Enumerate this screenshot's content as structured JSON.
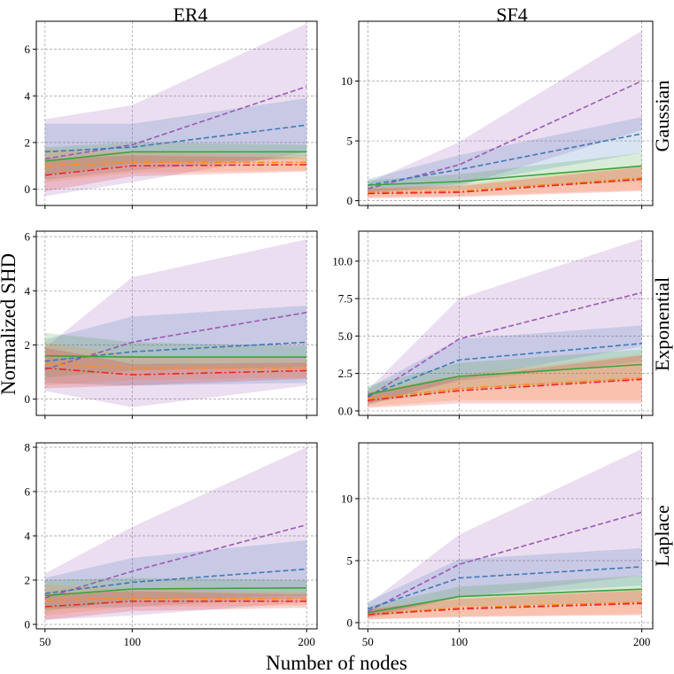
{
  "figure": {
    "xlabel": "Number of nodes",
    "ylabel": "Normalized SHD",
    "col_titles": [
      "ER4",
      "SF4"
    ],
    "row_titles": [
      "Gaussian",
      "Exponential",
      "Laplace"
    ]
  },
  "chart_data": [
    {
      "type": "line",
      "graph": "ER4",
      "noise": "Gaussian",
      "x": [
        50,
        100,
        200
      ],
      "xticks": [
        "50",
        "100",
        "200"
      ],
      "xlim": [
        45,
        206
      ],
      "ylim": [
        -0.7,
        7.2
      ],
      "yticks": [
        0,
        2,
        4,
        6
      ],
      "ytick_labels": [
        "0",
        "2",
        "4",
        "6"
      ],
      "grid": true,
      "series": [
        {
          "name": "purple",
          "color": "#9b59b6",
          "style": "dashed",
          "values": [
            1.3,
            1.9,
            4.4
          ],
          "band_low": [
            -0.3,
            0.3,
            1.6
          ],
          "band_high": [
            3.0,
            3.6,
            7.1
          ]
        },
        {
          "name": "blue",
          "color": "#3d7ab8",
          "style": "dashed",
          "values": [
            1.6,
            1.8,
            2.75
          ],
          "band_low": [
            0.4,
            0.8,
            1.4
          ],
          "band_high": [
            2.8,
            2.8,
            3.9
          ]
        },
        {
          "name": "green",
          "color": "#3ba23b",
          "style": "solid",
          "values": [
            1.2,
            1.6,
            1.6
          ],
          "band_low": [
            0.6,
            1.1,
            1.3
          ],
          "band_high": [
            1.8,
            2.0,
            1.9
          ]
        },
        {
          "name": "orange",
          "color": "#ff8c1a",
          "style": "dashdot",
          "values": [
            1.0,
            1.15,
            1.15
          ],
          "band_low": [
            0.3,
            0.7,
            0.8
          ],
          "band_high": [
            1.7,
            1.6,
            1.5
          ]
        },
        {
          "name": "red",
          "color": "#e8262a",
          "style": "dashdot",
          "values": [
            0.6,
            1.0,
            1.05
          ],
          "band_low": [
            -0.1,
            0.55,
            0.75
          ],
          "band_high": [
            1.3,
            1.45,
            1.35
          ]
        }
      ]
    },
    {
      "type": "line",
      "graph": "SF4",
      "noise": "Gaussian",
      "x": [
        50,
        100,
        200
      ],
      "xticks": [
        "50",
        "100",
        "200"
      ],
      "xlim": [
        45,
        206
      ],
      "ylim": [
        -0.4,
        15.0
      ],
      "yticks": [
        0,
        5,
        10
      ],
      "ytick_labels": [
        "0",
        "5",
        "10"
      ],
      "grid": true,
      "series": [
        {
          "name": "purple",
          "color": "#9b59b6",
          "style": "dashed",
          "values": [
            1.0,
            3.0,
            10.0
          ],
          "band_low": [
            0.6,
            1.2,
            5.9
          ],
          "band_high": [
            1.5,
            4.9,
            14.2
          ]
        },
        {
          "name": "blue",
          "color": "#3d7ab8",
          "style": "dashed",
          "values": [
            1.3,
            2.6,
            5.6
          ],
          "band_low": [
            0.7,
            1.4,
            4.0
          ],
          "band_high": [
            1.8,
            3.8,
            7.0
          ]
        },
        {
          "name": "green",
          "color": "#3ba23b",
          "style": "solid",
          "values": [
            1.3,
            1.6,
            2.9
          ],
          "band_low": [
            0.8,
            0.9,
            1.6
          ],
          "band_high": [
            1.7,
            2.2,
            4.0
          ]
        },
        {
          "name": "orange",
          "color": "#ff8c1a",
          "style": "dashdot",
          "values": [
            0.7,
            0.8,
            1.9
          ],
          "band_low": [
            0.3,
            0.4,
            0.9
          ],
          "band_high": [
            1.1,
            1.3,
            3.0
          ]
        },
        {
          "name": "red",
          "color": "#e8262a",
          "style": "dashdot",
          "values": [
            0.6,
            0.7,
            1.8
          ],
          "band_low": [
            0.2,
            0.3,
            0.8
          ],
          "band_high": [
            1.0,
            1.2,
            2.8
          ]
        }
      ]
    },
    {
      "type": "line",
      "graph": "ER4",
      "noise": "Exponential",
      "x": [
        50,
        100,
        200
      ],
      "xticks": [
        "50",
        "100",
        "200"
      ],
      "xlim": [
        45,
        206
      ],
      "ylim": [
        -0.6,
        6.2
      ],
      "yticks": [
        0,
        2,
        4,
        6
      ],
      "ytick_labels": [
        "0",
        "2",
        "4",
        "6"
      ],
      "grid": true,
      "series": [
        {
          "name": "purple",
          "color": "#9b59b6",
          "style": "dashed",
          "values": [
            1.1,
            2.1,
            3.2
          ],
          "band_low": [
            0.3,
            -0.3,
            0.5
          ],
          "band_high": [
            1.9,
            4.5,
            5.9
          ]
        },
        {
          "name": "blue",
          "color": "#3d7ab8",
          "style": "dashed",
          "values": [
            1.4,
            1.75,
            2.1
          ],
          "band_low": [
            0.6,
            0.5,
            0.6
          ],
          "band_high": [
            2.2,
            3.05,
            3.45
          ]
        },
        {
          "name": "green",
          "color": "#3ba23b",
          "style": "solid",
          "values": [
            1.6,
            1.55,
            1.55
          ],
          "band_low": [
            0.8,
            1.05,
            1.2
          ],
          "band_high": [
            2.45,
            2.1,
            1.95
          ]
        },
        {
          "name": "orange",
          "color": "#ff8c1a",
          "style": "dashdot",
          "values": [
            1.3,
            1.15,
            1.15
          ],
          "band_low": [
            0.5,
            0.7,
            0.8
          ],
          "band_high": [
            2.1,
            1.6,
            1.5
          ]
        },
        {
          "name": "red",
          "color": "#e8262a",
          "style": "dashdot",
          "values": [
            1.15,
            0.9,
            1.05
          ],
          "band_low": [
            0.4,
            0.5,
            0.75
          ],
          "band_high": [
            1.9,
            1.3,
            1.35
          ]
        }
      ]
    },
    {
      "type": "line",
      "graph": "SF4",
      "noise": "Exponential",
      "x": [
        50,
        100,
        200
      ],
      "xticks": [
        "50",
        "100",
        "200"
      ],
      "xlim": [
        45,
        206
      ],
      "ylim": [
        -0.3,
        12.0
      ],
      "yticks": [
        0.0,
        2.5,
        5.0,
        7.5,
        10.0
      ],
      "ytick_labels": [
        "0.0",
        "2.5",
        "5.0",
        "7.5",
        "10.0"
      ],
      "grid": true,
      "series": [
        {
          "name": "purple",
          "color": "#9b59b6",
          "style": "dashed",
          "values": [
            0.9,
            4.8,
            7.9
          ],
          "band_low": [
            0.4,
            2.1,
            4.3
          ],
          "band_high": [
            1.4,
            7.5,
            11.5
          ]
        },
        {
          "name": "blue",
          "color": "#3d7ab8",
          "style": "dashed",
          "values": [
            1.0,
            3.4,
            4.5
          ],
          "band_low": [
            0.5,
            2.0,
            3.3
          ],
          "band_high": [
            1.5,
            4.8,
            5.7
          ]
        },
        {
          "name": "green",
          "color": "#3ba23b",
          "style": "solid",
          "values": [
            1.1,
            2.3,
            3.1
          ],
          "band_low": [
            0.5,
            1.4,
            2.1
          ],
          "band_high": [
            1.7,
            3.2,
            4.1
          ]
        },
        {
          "name": "orange",
          "color": "#ff8c1a",
          "style": "dashdot",
          "values": [
            0.8,
            1.5,
            2.2
          ],
          "band_low": [
            0.3,
            0.7,
            0.7
          ],
          "band_high": [
            1.3,
            2.4,
            3.8
          ]
        },
        {
          "name": "red",
          "color": "#e8262a",
          "style": "dashdot",
          "values": [
            0.7,
            1.35,
            2.1
          ],
          "band_low": [
            0.2,
            0.5,
            0.5
          ],
          "band_high": [
            1.2,
            2.2,
            3.7
          ]
        }
      ]
    },
    {
      "type": "line",
      "graph": "ER4",
      "noise": "Laplace",
      "x": [
        50,
        100,
        200
      ],
      "xticks": [
        "50",
        "100",
        "200"
      ],
      "xlim": [
        45,
        206
      ],
      "ylim": [
        -0.2,
        8.2
      ],
      "yticks": [
        0,
        2,
        4,
        6,
        8
      ],
      "ytick_labels": [
        "0",
        "2",
        "4",
        "6",
        "8"
      ],
      "grid": true,
      "series": [
        {
          "name": "purple",
          "color": "#9b59b6",
          "style": "dashed",
          "values": [
            1.2,
            2.4,
            4.5
          ],
          "band_low": [
            0.2,
            0.4,
            1.0
          ],
          "band_high": [
            2.3,
            4.4,
            8.0
          ]
        },
        {
          "name": "blue",
          "color": "#3d7ab8",
          "style": "dashed",
          "values": [
            1.4,
            1.9,
            2.5
          ],
          "band_low": [
            0.7,
            0.8,
            1.2
          ],
          "band_high": [
            2.1,
            3.0,
            3.8
          ]
        },
        {
          "name": "green",
          "color": "#3ba23b",
          "style": "solid",
          "values": [
            1.3,
            1.6,
            1.65
          ],
          "band_low": [
            0.6,
            1.1,
            1.3
          ],
          "band_high": [
            2.0,
            2.1,
            2.0
          ]
        },
        {
          "name": "orange",
          "color": "#ff8c1a",
          "style": "dashdot",
          "values": [
            1.1,
            1.2,
            1.15
          ],
          "band_low": [
            0.4,
            0.8,
            0.85
          ],
          "band_high": [
            1.8,
            1.6,
            1.45
          ]
        },
        {
          "name": "red",
          "color": "#e8262a",
          "style": "dashdot",
          "values": [
            0.8,
            1.05,
            1.05
          ],
          "band_low": [
            0.2,
            0.6,
            0.75
          ],
          "band_high": [
            1.4,
            1.5,
            1.35
          ]
        }
      ]
    },
    {
      "type": "line",
      "graph": "SF4",
      "noise": "Laplace",
      "x": [
        50,
        100,
        200
      ],
      "xticks": [
        "50",
        "100",
        "200"
      ],
      "xlim": [
        45,
        206
      ],
      "ylim": [
        -0.5,
        14.5
      ],
      "yticks": [
        0,
        5,
        10
      ],
      "ytick_labels": [
        "0",
        "5",
        "10"
      ],
      "grid": true,
      "series": [
        {
          "name": "purple",
          "color": "#9b59b6",
          "style": "dashed",
          "values": [
            0.9,
            4.7,
            8.9
          ],
          "band_low": [
            0.4,
            2.0,
            3.8
          ],
          "band_high": [
            1.5,
            7.1,
            14.0
          ]
        },
        {
          "name": "blue",
          "color": "#3d7ab8",
          "style": "dashed",
          "values": [
            1.1,
            3.6,
            4.5
          ],
          "band_low": [
            0.5,
            2.1,
            3.0
          ],
          "band_high": [
            1.7,
            5.1,
            6.0
          ]
        },
        {
          "name": "green",
          "color": "#3ba23b",
          "style": "solid",
          "values": [
            0.8,
            2.1,
            2.7
          ],
          "band_low": [
            0.4,
            1.3,
            1.6
          ],
          "band_high": [
            1.3,
            2.9,
            3.8
          ]
        },
        {
          "name": "orange",
          "color": "#ff8c1a",
          "style": "dashdot",
          "values": [
            0.7,
            1.2,
            1.65
          ],
          "band_low": [
            0.3,
            0.5,
            0.7
          ],
          "band_high": [
            1.1,
            2.0,
            2.7
          ]
        },
        {
          "name": "red",
          "color": "#e8262a",
          "style": "dashdot",
          "values": [
            0.65,
            1.1,
            1.55
          ],
          "band_low": [
            0.25,
            0.45,
            0.6
          ],
          "band_high": [
            1.05,
            1.9,
            2.6
          ]
        }
      ]
    }
  ]
}
